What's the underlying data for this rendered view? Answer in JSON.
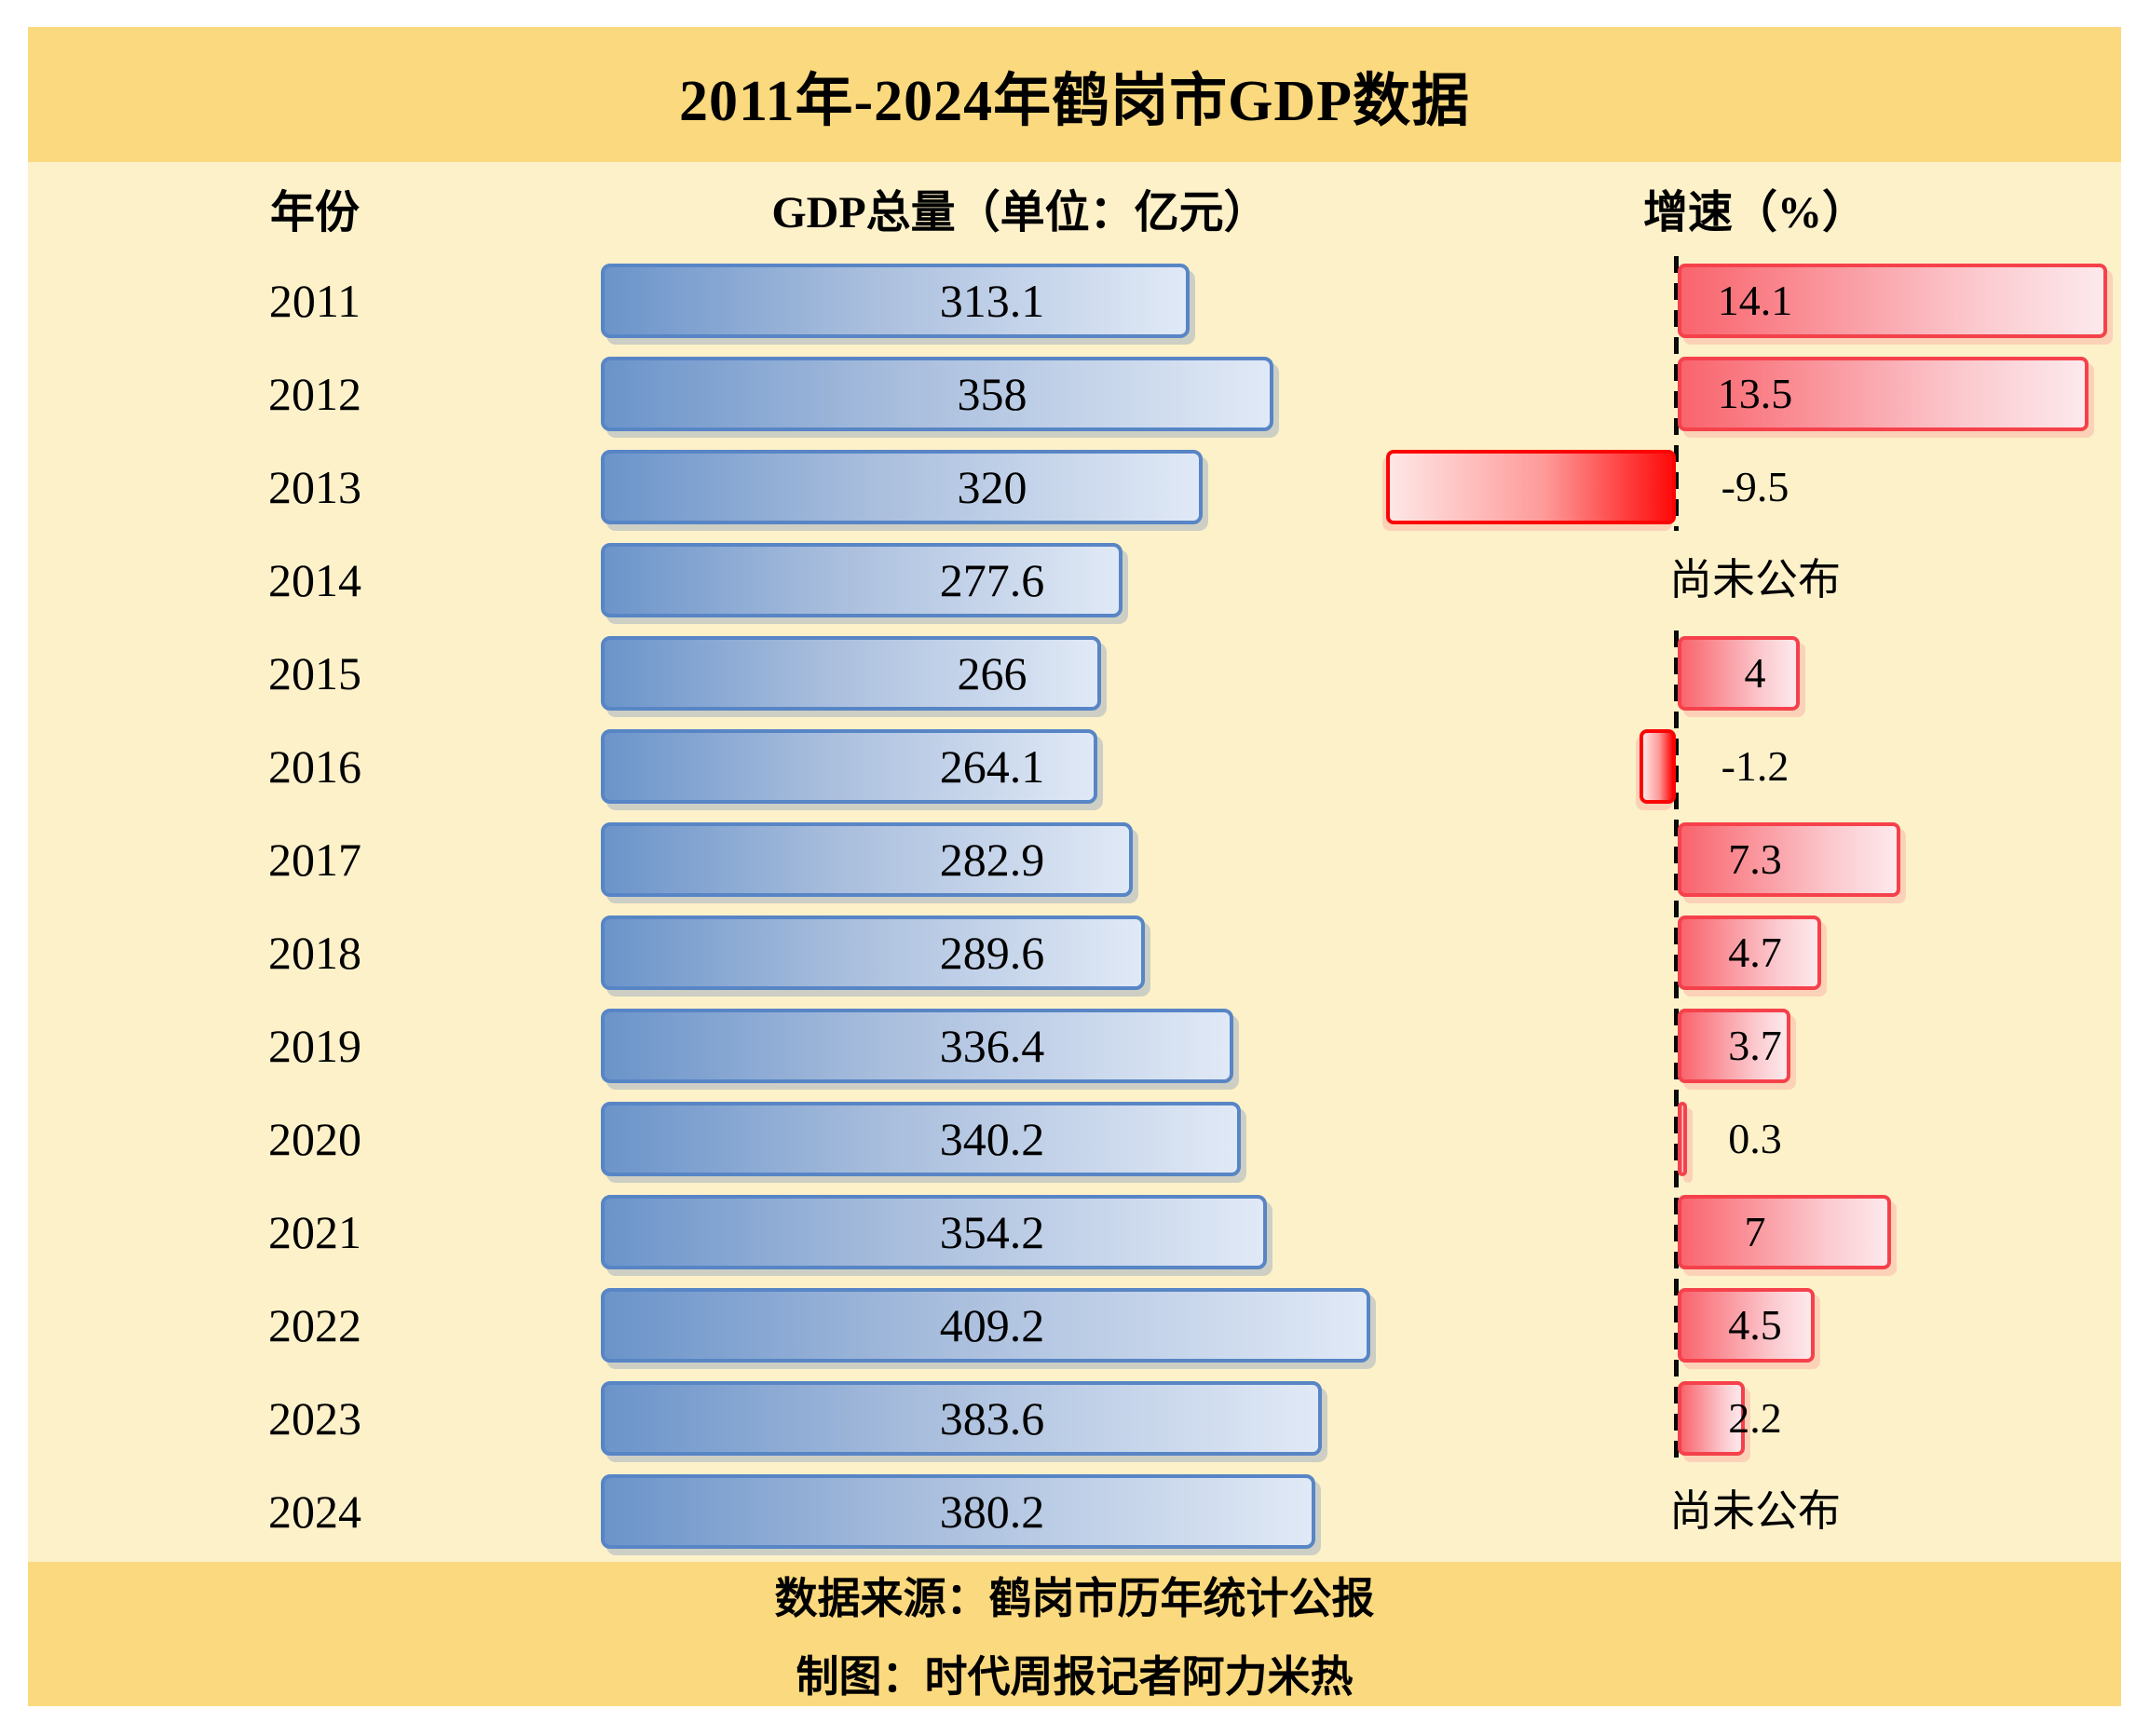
{
  "header": {
    "title": "2011年-2024年鹤岗市GDP数据"
  },
  "columns": {
    "year": "年份",
    "gdp": "GDP总量（单位：亿元）",
    "growth": "增速（%）"
  },
  "labels": {
    "not_published": "尚未公布"
  },
  "footer": {
    "source": "数据来源：鹤岗市历年统计公报",
    "credit": "制图：时代周报记者阿力米热"
  },
  "colors": {
    "band_yellow": "#fbd97e",
    "body_yellow": "#fdf1ca",
    "gdp_bar_border": "#5885c5",
    "gdp_bar_fill_start": "#6b94ca",
    "gdp_bar_fill_end": "#e0e9f6",
    "growth_bar_border": "#f5414b",
    "growth_bar_fill_start": "#f9646d",
    "growth_bar_fill_end": "#fce9ec",
    "growth_negative_border": "#fa0505",
    "growth_negative_fill": "#fe0b0b",
    "zero_line": "#0a0a0a"
  },
  "chart_data": {
    "type": "bar",
    "orientation": "horizontal",
    "title": "2011年-2024年鹤岗市GDP数据",
    "categories": [
      "2011",
      "2012",
      "2013",
      "2014",
      "2015",
      "2016",
      "2017",
      "2018",
      "2019",
      "2020",
      "2021",
      "2022",
      "2023",
      "2024"
    ],
    "series": [
      {
        "name": "GDP总量（单位：亿元）",
        "values": [
          313.1,
          358,
          320,
          277.6,
          266,
          264.1,
          282.9,
          289.6,
          336.4,
          340.2,
          354.2,
          409.2,
          383.6,
          380.2
        ]
      },
      {
        "name": "增速（%）",
        "values": [
          14.1,
          13.5,
          -9.5,
          null,
          4,
          -1.2,
          7.3,
          4.7,
          3.7,
          0.3,
          7,
          4.5,
          2.2,
          null
        ],
        "null_label": "尚未公布"
      }
    ],
    "annotations": [
      "2014年增速尚未公布",
      "2024年增速尚未公布"
    ],
    "legend": "none",
    "grid": "off",
    "zero_baseline_style": "black dashed vertical line (growth column)"
  }
}
